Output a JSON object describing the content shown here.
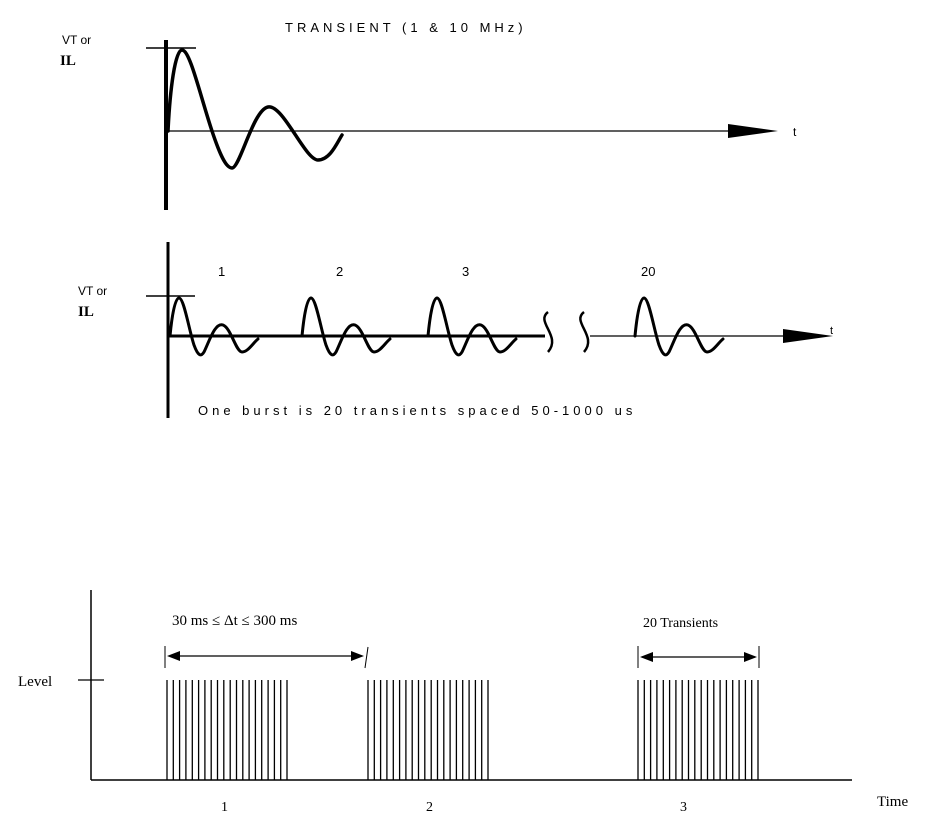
{
  "transient": {
    "title": "TRANSIENT (1 & 10 MHz)",
    "y_label_top": "VT or",
    "y_label_bottom": "IL",
    "t_label": "t"
  },
  "burst": {
    "y_label_top": "VT or",
    "y_label_bottom": "IL",
    "t_label": "t",
    "numbers": [
      "1",
      "2",
      "3",
      "20"
    ],
    "caption": "One burst is 20 transients spaced 50-1000 us"
  },
  "train": {
    "level_label": "Level",
    "time_label": "Time",
    "interval_label": "30 ms ≤ Δt ≤ 300 ms",
    "count_label": "20 Transients",
    "burst_numbers": [
      "1",
      "2",
      "3"
    ],
    "lines_per_burst": 20
  },
  "colors": {
    "ink": "#000000",
    "bg": "#ffffff"
  }
}
